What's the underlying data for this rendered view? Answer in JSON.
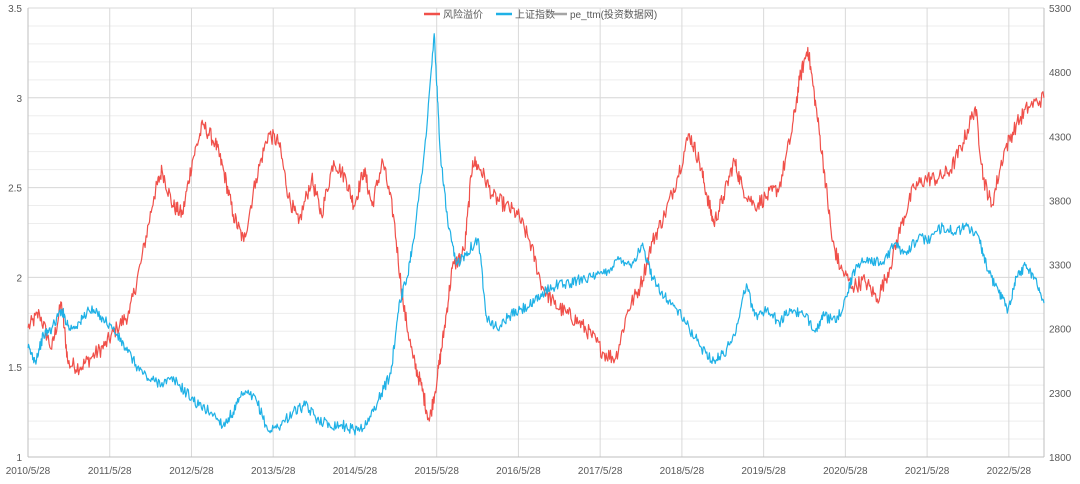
{
  "chart_data": {
    "type": "line",
    "title": "",
    "legend_position": "top",
    "x_tick_labels": [
      "2010/5/28",
      "2011/5/28",
      "2012/5/28",
      "2013/5/28",
      "2014/5/28",
      "2015/5/28",
      "2016/5/28",
      "2017/5/28",
      "2018/5/28",
      "2019/5/28",
      "2020/5/28",
      "2021/5/28",
      "2022/5/28"
    ],
    "x_range_years": [
      2010.41,
      2022.84
    ],
    "y_left": {
      "ticks": [
        "1",
        "1.5",
        "2",
        "2.5",
        "3",
        "3.5"
      ],
      "ylim": [
        1,
        3.5
      ]
    },
    "y_right": {
      "ticks": [
        "1800",
        "2300",
        "2800",
        "3300",
        "3800",
        "4300",
        "4800",
        "5300"
      ],
      "ylim": [
        1800,
        5300
      ]
    },
    "grid": "vertical-and-horizontal",
    "series": [
      {
        "name": "风险溢价",
        "axis": "left",
        "color": "#F0504A",
        "points": [
          [
            2010.41,
            1.72
          ],
          [
            2010.55,
            1.8
          ],
          [
            2010.7,
            1.6
          ],
          [
            2010.82,
            1.86
          ],
          [
            2010.9,
            1.52
          ],
          [
            2011.05,
            1.5
          ],
          [
            2011.2,
            1.56
          ],
          [
            2011.35,
            1.62
          ],
          [
            2011.5,
            1.72
          ],
          [
            2011.65,
            1.8
          ],
          [
            2011.8,
            2.1
          ],
          [
            2011.95,
            2.45
          ],
          [
            2012.05,
            2.6
          ],
          [
            2012.18,
            2.4
          ],
          [
            2012.3,
            2.35
          ],
          [
            2012.42,
            2.65
          ],
          [
            2012.55,
            2.85
          ],
          [
            2012.7,
            2.75
          ],
          [
            2012.8,
            2.6
          ],
          [
            2012.92,
            2.35
          ],
          [
            2013.05,
            2.2
          ],
          [
            2013.2,
            2.55
          ],
          [
            2013.35,
            2.8
          ],
          [
            2013.48,
            2.75
          ],
          [
            2013.6,
            2.45
          ],
          [
            2013.72,
            2.3
          ],
          [
            2013.88,
            2.55
          ],
          [
            2014.0,
            2.35
          ],
          [
            2014.15,
            2.65
          ],
          [
            2014.3,
            2.55
          ],
          [
            2014.4,
            2.4
          ],
          [
            2014.52,
            2.6
          ],
          [
            2014.62,
            2.4
          ],
          [
            2014.75,
            2.65
          ],
          [
            2014.88,
            2.35
          ],
          [
            2015.0,
            1.85
          ],
          [
            2015.12,
            1.55
          ],
          [
            2015.22,
            1.4
          ],
          [
            2015.32,
            1.2
          ],
          [
            2015.42,
            1.45
          ],
          [
            2015.5,
            1.7
          ],
          [
            2015.6,
            2.05
          ],
          [
            2015.75,
            2.15
          ],
          [
            2015.85,
            2.65
          ],
          [
            2015.95,
            2.6
          ],
          [
            2016.1,
            2.45
          ],
          [
            2016.25,
            2.4
          ],
          [
            2016.4,
            2.35
          ],
          [
            2016.55,
            2.2
          ],
          [
            2016.7,
            1.95
          ],
          [
            2016.85,
            1.85
          ],
          [
            2017.0,
            1.8
          ],
          [
            2017.15,
            1.75
          ],
          [
            2017.3,
            1.68
          ],
          [
            2017.45,
            1.58
          ],
          [
            2017.6,
            1.55
          ],
          [
            2017.75,
            1.82
          ],
          [
            2017.9,
            1.95
          ],
          [
            2018.05,
            2.2
          ],
          [
            2018.2,
            2.35
          ],
          [
            2018.35,
            2.55
          ],
          [
            2018.5,
            2.8
          ],
          [
            2018.62,
            2.65
          ],
          [
            2018.72,
            2.45
          ],
          [
            2018.8,
            2.3
          ],
          [
            2018.92,
            2.45
          ],
          [
            2019.05,
            2.65
          ],
          [
            2019.15,
            2.5
          ],
          [
            2019.3,
            2.4
          ],
          [
            2019.45,
            2.45
          ],
          [
            2019.6,
            2.5
          ],
          [
            2019.75,
            2.8
          ],
          [
            2019.85,
            3.1
          ],
          [
            2019.95,
            3.28
          ],
          [
            2020.05,
            2.95
          ],
          [
            2020.15,
            2.6
          ],
          [
            2020.25,
            2.2
          ],
          [
            2020.35,
            2.05
          ],
          [
            2020.5,
            1.95
          ],
          [
            2020.65,
            1.98
          ],
          [
            2020.8,
            1.88
          ],
          [
            2020.95,
            2.05
          ],
          [
            2021.1,
            2.3
          ],
          [
            2021.25,
            2.5
          ],
          [
            2021.4,
            2.55
          ],
          [
            2021.55,
            2.55
          ],
          [
            2021.7,
            2.6
          ],
          [
            2021.85,
            2.75
          ],
          [
            2022.0,
            2.95
          ],
          [
            2022.1,
            2.55
          ],
          [
            2022.2,
            2.4
          ],
          [
            2022.35,
            2.7
          ],
          [
            2022.5,
            2.85
          ],
          [
            2022.65,
            2.95
          ],
          [
            2022.84,
            3.0
          ]
        ]
      },
      {
        "name": "上证指数",
        "axis": "right",
        "color": "#1FB1E6",
        "points": [
          [
            2010.41,
            2650
          ],
          [
            2010.5,
            2550
          ],
          [
            2010.6,
            2750
          ],
          [
            2010.7,
            2800
          ],
          [
            2010.82,
            2950
          ],
          [
            2010.92,
            2800
          ],
          [
            2011.05,
            2850
          ],
          [
            2011.15,
            2950
          ],
          [
            2011.3,
            2900
          ],
          [
            2011.45,
            2800
          ],
          [
            2011.6,
            2650
          ],
          [
            2011.75,
            2500
          ],
          [
            2011.9,
            2400
          ],
          [
            2012.05,
            2380
          ],
          [
            2012.2,
            2400
          ],
          [
            2012.35,
            2300
          ],
          [
            2012.5,
            2200
          ],
          [
            2012.65,
            2150
          ],
          [
            2012.8,
            2050
          ],
          [
            2012.92,
            2150
          ],
          [
            2013.05,
            2300
          ],
          [
            2013.2,
            2250
          ],
          [
            2013.35,
            2000
          ],
          [
            2013.5,
            2050
          ],
          [
            2013.65,
            2150
          ],
          [
            2013.8,
            2200
          ],
          [
            2013.95,
            2100
          ],
          [
            2014.1,
            2050
          ],
          [
            2014.25,
            2050
          ],
          [
            2014.4,
            2010
          ],
          [
            2014.55,
            2050
          ],
          [
            2014.7,
            2250
          ],
          [
            2014.85,
            2450
          ],
          [
            2014.95,
            3000
          ],
          [
            2015.05,
            3200
          ],
          [
            2015.15,
            3600
          ],
          [
            2015.28,
            4300
          ],
          [
            2015.38,
            5100
          ],
          [
            2015.45,
            4200
          ],
          [
            2015.55,
            3600
          ],
          [
            2015.65,
            3300
          ],
          [
            2015.78,
            3400
          ],
          [
            2015.92,
            3500
          ],
          [
            2016.02,
            2900
          ],
          [
            2016.15,
            2800
          ],
          [
            2016.3,
            2900
          ],
          [
            2016.45,
            2950
          ],
          [
            2016.6,
            3000
          ],
          [
            2016.75,
            3100
          ],
          [
            2016.9,
            3150
          ],
          [
            2017.05,
            3150
          ],
          [
            2017.2,
            3200
          ],
          [
            2017.35,
            3200
          ],
          [
            2017.5,
            3250
          ],
          [
            2017.65,
            3350
          ],
          [
            2017.8,
            3300
          ],
          [
            2017.92,
            3450
          ],
          [
            2018.05,
            3200
          ],
          [
            2018.2,
            3050
          ],
          [
            2018.35,
            2950
          ],
          [
            2018.5,
            2800
          ],
          [
            2018.65,
            2650
          ],
          [
            2018.8,
            2550
          ],
          [
            2018.92,
            2600
          ],
          [
            2019.05,
            2750
          ],
          [
            2019.2,
            3150
          ],
          [
            2019.3,
            2900
          ],
          [
            2019.45,
            2950
          ],
          [
            2019.6,
            2850
          ],
          [
            2019.75,
            2950
          ],
          [
            2019.9,
            2900
          ],
          [
            2020.05,
            2800
          ],
          [
            2020.15,
            2900
          ],
          [
            2020.3,
            2850
          ],
          [
            2020.42,
            3050
          ],
          [
            2020.55,
            3300
          ],
          [
            2020.7,
            3350
          ],
          [
            2020.85,
            3300
          ],
          [
            2021.0,
            3450
          ],
          [
            2021.15,
            3400
          ],
          [
            2021.3,
            3500
          ],
          [
            2021.45,
            3500
          ],
          [
            2021.6,
            3600
          ],
          [
            2021.75,
            3550
          ],
          [
            2021.9,
            3600
          ],
          [
            2022.05,
            3500
          ],
          [
            2022.15,
            3250
          ],
          [
            2022.28,
            3100
          ],
          [
            2022.4,
            2950
          ],
          [
            2022.5,
            3200
          ],
          [
            2022.62,
            3300
          ],
          [
            2022.72,
            3200
          ],
          [
            2022.84,
            3000
          ]
        ]
      },
      {
        "name": "pe_ttm(投资数据网)",
        "axis": "left",
        "color": "#A5A5A5",
        "points": []
      }
    ]
  }
}
